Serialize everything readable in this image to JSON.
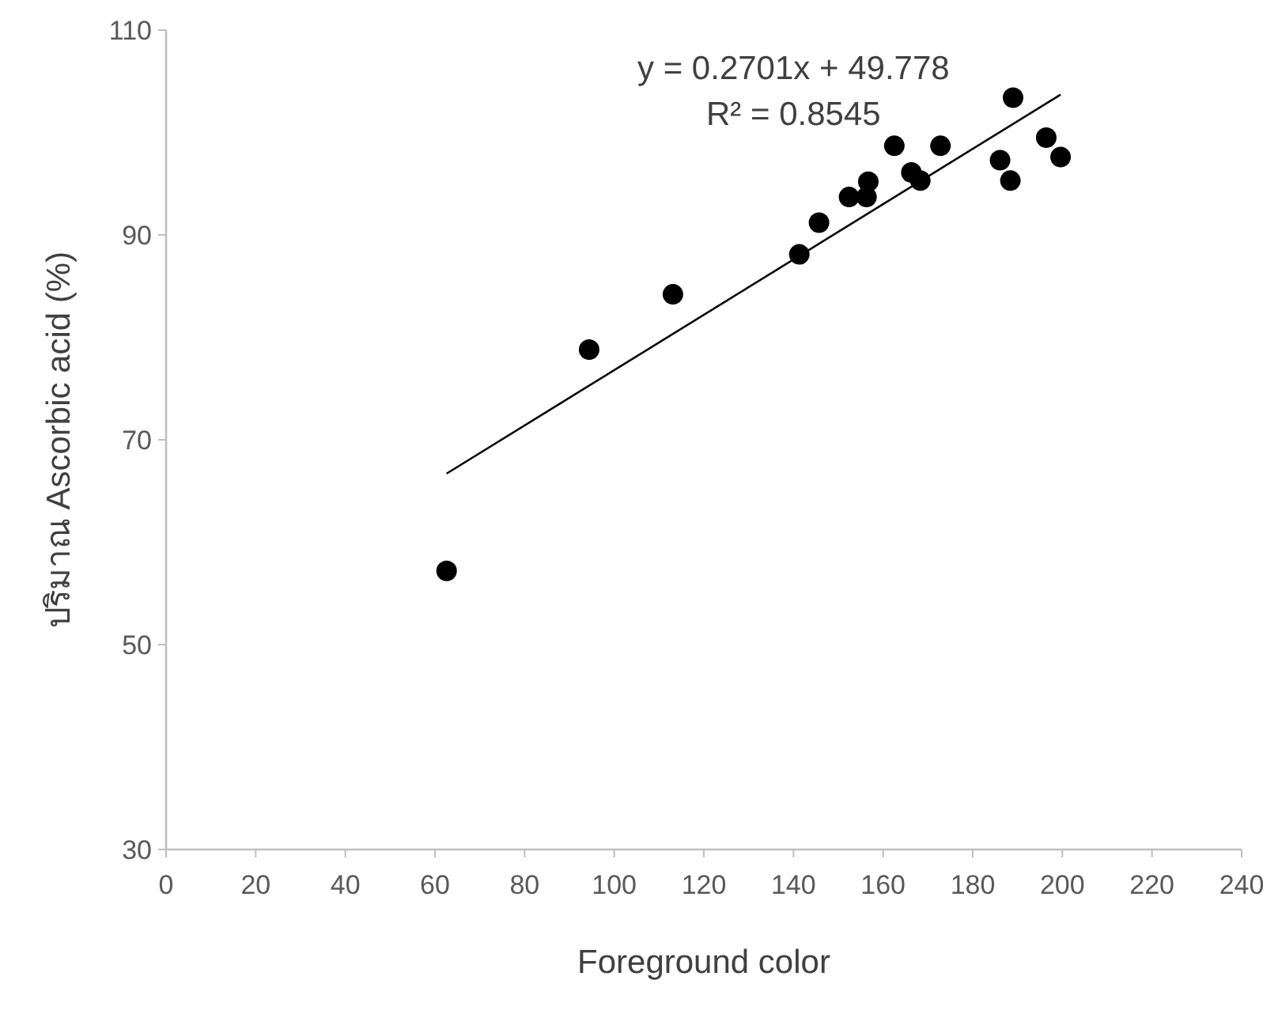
{
  "chart_data": {
    "type": "scatter",
    "xlabel": "Foreground color",
    "ylabel": "ปริมาณ Ascorbic acid (%)",
    "series": [
      {
        "type": "scatter",
        "color": "#000000",
        "marker": "circle",
        "x": [
          62.6,
          94.4,
          113.1,
          141.3,
          145.7,
          152.4,
          156.7,
          156.3,
          162.5,
          166.3,
          168.3,
          172.8,
          186.1,
          188.4,
          189.0,
          196.4,
          199.6
        ],
        "values": [
          57.2,
          78.8,
          84.2,
          88.1,
          91.2,
          93.7,
          95.2,
          93.7,
          98.7,
          96.1,
          95.3,
          98.7,
          97.3,
          95.3,
          103.4,
          99.5,
          97.6
        ]
      },
      {
        "type": "line",
        "color": "#000000",
        "marker": "none",
        "line_style": "solid",
        "x": [
          62.6,
          199.6
        ],
        "values": [
          66.7,
          103.7
        ]
      }
    ],
    "annotations": [
      "y = 0.2701x + 49.778",
      "R² = 0.8545"
    ],
    "xlim": [
      0,
      240
    ],
    "xticks": [
      0,
      20,
      40,
      60,
      80,
      100,
      120,
      140,
      160,
      180,
      200,
      220,
      240
    ],
    "ylim": [
      30,
      110
    ],
    "yticks": [
      30,
      50,
      70,
      90,
      110
    ],
    "grid": false
  }
}
